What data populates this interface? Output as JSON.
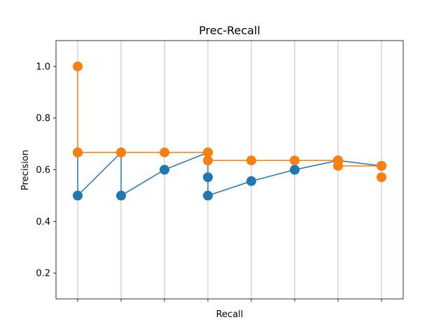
{
  "chart_data": {
    "type": "line",
    "title": "Prec-Recall",
    "xlabel": "Recall",
    "ylabel": "Precision",
    "xlim": [
      0.5,
      8.5
    ],
    "ylim": [
      0.1,
      1.1
    ],
    "yticks": [
      0.2,
      0.4,
      0.6,
      0.8,
      1.0
    ],
    "ytick_labels": [
      "0.2",
      "0.4",
      "0.6",
      "0.8",
      "1.0"
    ],
    "xticks": [
      1,
      2,
      3,
      4,
      5,
      6,
      7,
      8
    ],
    "grid": "x-only",
    "legend": "none",
    "series": [
      {
        "color": "#1f77b4",
        "x": [
          1,
          1,
          2,
          2,
          3,
          4,
          4,
          4,
          5,
          6,
          7,
          8
        ],
        "y": [
          0.667,
          0.5,
          0.667,
          0.5,
          0.6,
          0.667,
          0.571,
          0.5,
          0.556,
          0.6,
          0.636,
          0.615
        ]
      },
      {
        "color": "#ff7f0e",
        "x": [
          1,
          1,
          2,
          3,
          4,
          4,
          5,
          6,
          7,
          7,
          8,
          8
        ],
        "y": [
          1.0,
          0.667,
          0.667,
          0.667,
          0.667,
          0.636,
          0.636,
          0.636,
          0.636,
          0.615,
          0.615,
          0.615
        ]
      }
    ],
    "extra_points": [
      {
        "series": 1,
        "x": 8,
        "y": 0.571
      }
    ]
  }
}
